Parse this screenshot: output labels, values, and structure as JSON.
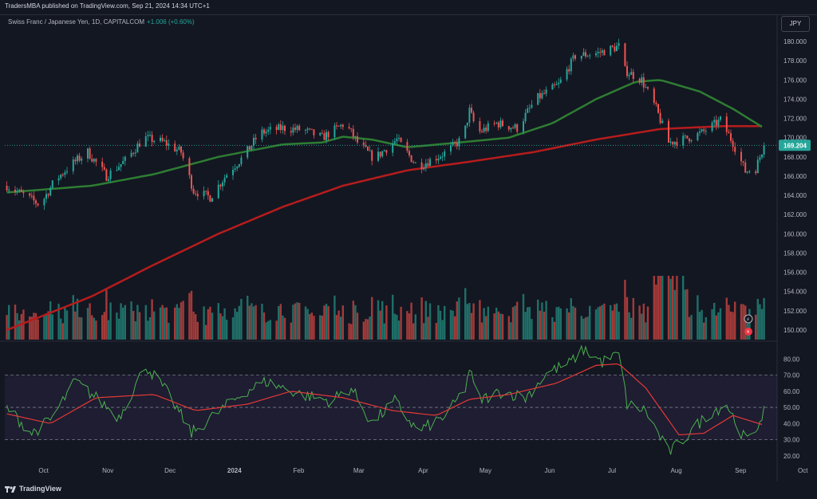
{
  "header": {
    "published": "TradersMBA published on TradingView.com, Sep 21, 2024 14:34 UTC+1"
  },
  "legend": {
    "symbol": "Swiss Franc / Japanese Yen, 1D, CAPITALCOM",
    "change": "+1.006 (+0.60%)"
  },
  "currency_button": "JPY",
  "footer": {
    "brand": "TradingView"
  },
  "colors": {
    "background": "#131722",
    "up": "#26a69a",
    "down": "#ef5350",
    "ma_fast": "#2e7d32",
    "ma_slow": "#b71c1c",
    "rsi_line": "#4caf50",
    "rsi_ma": "#e53935",
    "rsi_band": "#7e57c2",
    "last_price": "#26a69a"
  },
  "chart_data": [
    {
      "type": "candlestick",
      "x_ticks": [
        "Oct",
        "Nov",
        "Dec",
        "2024",
        "Feb",
        "Mar",
        "Apr",
        "May",
        "Jun",
        "Jul",
        "Aug",
        "Sep",
        "Oct"
      ],
      "ylim": [
        149,
        181
      ],
      "y_ticks": [
        "180.000",
        "178.000",
        "176.000",
        "174.000",
        "172.000",
        "170.000",
        "168.000",
        "166.000",
        "164.000",
        "162.000",
        "160.000",
        "158.000",
        "156.000",
        "154.000",
        "152.000",
        "150.000"
      ],
      "last_price": "169.204",
      "close_anchors": [
        {
          "x": "2023-09-21",
          "y": 165.0
        },
        {
          "x": "2023-10-01",
          "y": 163.8
        },
        {
          "x": "2023-10-07",
          "y": 163.0
        },
        {
          "x": "2023-10-14",
          "y": 165.5
        },
        {
          "x": "2023-10-22",
          "y": 167.2
        },
        {
          "x": "2023-10-30",
          "y": 168.5
        },
        {
          "x": "2023-11-08",
          "y": 166.0
        },
        {
          "x": "2023-11-18",
          "y": 167.8
        },
        {
          "x": "2023-11-26",
          "y": 170.0
        },
        {
          "x": "2023-12-06",
          "y": 169.5
        },
        {
          "x": "2023-12-14",
          "y": 168.5
        },
        {
          "x": "2023-12-20",
          "y": 164.5
        },
        {
          "x": "2023-12-28",
          "y": 163.8
        },
        {
          "x": "2024-01-06",
          "y": 166.5
        },
        {
          "x": "2024-01-13",
          "y": 168.0
        },
        {
          "x": "2024-01-21",
          "y": 170.5
        },
        {
          "x": "2024-02-01",
          "y": 171.0
        },
        {
          "x": "2024-02-11",
          "y": 170.8
        },
        {
          "x": "2024-02-20",
          "y": 170.0
        },
        {
          "x": "2024-03-02",
          "y": 171.5
        },
        {
          "x": "2024-03-08",
          "y": 169.5
        },
        {
          "x": "2024-03-16",
          "y": 167.8
        },
        {
          "x": "2024-03-27",
          "y": 169.8
        },
        {
          "x": "2024-04-06",
          "y": 167.0
        },
        {
          "x": "2024-04-20",
          "y": 168.5
        },
        {
          "x": "2024-04-28",
          "y": 170.0
        },
        {
          "x": "2024-05-01",
          "y": 172.8
        },
        {
          "x": "2024-05-05",
          "y": 170.5
        },
        {
          "x": "2024-05-14",
          "y": 171.5
        },
        {
          "x": "2024-05-24",
          "y": 171.0
        },
        {
          "x": "2024-06-02",
          "y": 174.0
        },
        {
          "x": "2024-06-13",
          "y": 175.5
        },
        {
          "x": "2024-06-21",
          "y": 178.5
        },
        {
          "x": "2024-07-02",
          "y": 178.8
        },
        {
          "x": "2024-07-12",
          "y": 179.5
        },
        {
          "x": "2024-07-15",
          "y": 177.0
        },
        {
          "x": "2024-07-23",
          "y": 176.0
        },
        {
          "x": "2024-07-30",
          "y": 173.0
        },
        {
          "x": "2024-08-05",
          "y": 169.5
        },
        {
          "x": "2024-08-12",
          "y": 169.8
        },
        {
          "x": "2024-08-21",
          "y": 170.5
        },
        {
          "x": "2024-08-30",
          "y": 171.8
        },
        {
          "x": "2024-09-05",
          "y": 169.5
        },
        {
          "x": "2024-09-11",
          "y": 166.5
        },
        {
          "x": "2024-09-16",
          "y": 166.8
        },
        {
          "x": "2024-09-20",
          "y": 169.2
        }
      ],
      "ma_fast": [
        {
          "x": "2023-09-21",
          "y": 164.3
        },
        {
          "x": "2023-11-01",
          "y": 165.0
        },
        {
          "x": "2023-12-01",
          "y": 166.2
        },
        {
          "x": "2024-01-01",
          "y": 168.0
        },
        {
          "x": "2024-02-01",
          "y": 169.3
        },
        {
          "x": "2024-02-20",
          "y": 169.5
        },
        {
          "x": "2024-03-01",
          "y": 170.1
        },
        {
          "x": "2024-03-15",
          "y": 169.8
        },
        {
          "x": "2024-04-01",
          "y": 169.0
        },
        {
          "x": "2024-05-01",
          "y": 169.6
        },
        {
          "x": "2024-05-20",
          "y": 170.0
        },
        {
          "x": "2024-06-10",
          "y": 171.5
        },
        {
          "x": "2024-07-01",
          "y": 174.0
        },
        {
          "x": "2024-07-20",
          "y": 175.8
        },
        {
          "x": "2024-08-01",
          "y": 176.0
        },
        {
          "x": "2024-08-20",
          "y": 174.8
        },
        {
          "x": "2024-09-05",
          "y": 173.0
        },
        {
          "x": "2024-09-20",
          "y": 171.0
        }
      ],
      "ma_slow": [
        {
          "x": "2023-09-21",
          "y": 150.0
        },
        {
          "x": "2023-11-01",
          "y": 153.5
        },
        {
          "x": "2023-12-01",
          "y": 156.8
        },
        {
          "x": "2024-01-01",
          "y": 160.0
        },
        {
          "x": "2024-02-01",
          "y": 162.8
        },
        {
          "x": "2024-03-01",
          "y": 165.0
        },
        {
          "x": "2024-04-01",
          "y": 166.6
        },
        {
          "x": "2024-05-01",
          "y": 167.5
        },
        {
          "x": "2024-06-01",
          "y": 168.5
        },
        {
          "x": "2024-07-01",
          "y": 169.8
        },
        {
          "x": "2024-08-01",
          "y": 170.9
        },
        {
          "x": "2024-09-01",
          "y": 171.2
        },
        {
          "x": "2024-09-20",
          "y": 171.2
        }
      ]
    },
    {
      "type": "bar",
      "name": "Volume",
      "note": "shown as bars at bottom of price pane, colored by candle direction"
    },
    {
      "type": "line",
      "ylim": [
        15,
        90
      ],
      "y_ticks": [
        "80.00",
        "70.00",
        "60.00",
        "50.00",
        "40.00",
        "30.00",
        "20.00"
      ],
      "band": [
        30,
        70
      ],
      "midline": 50,
      "rsi_anchors": [
        {
          "x": "2023-09-21",
          "y": 50
        },
        {
          "x": "2023-10-03",
          "y": 34
        },
        {
          "x": "2023-10-12",
          "y": 42
        },
        {
          "x": "2023-10-24",
          "y": 66
        },
        {
          "x": "2023-11-03",
          "y": 56
        },
        {
          "x": "2023-11-14",
          "y": 44
        },
        {
          "x": "2023-11-27",
          "y": 76
        },
        {
          "x": "2023-12-08",
          "y": 58
        },
        {
          "x": "2023-12-19",
          "y": 34
        },
        {
          "x": "2024-01-04",
          "y": 50
        },
        {
          "x": "2024-01-14",
          "y": 60
        },
        {
          "x": "2024-01-24",
          "y": 66
        },
        {
          "x": "2024-02-10",
          "y": 58
        },
        {
          "x": "2024-02-24",
          "y": 54
        },
        {
          "x": "2024-03-05",
          "y": 62
        },
        {
          "x": "2024-03-15",
          "y": 40
        },
        {
          "x": "2024-03-26",
          "y": 54
        },
        {
          "x": "2024-04-06",
          "y": 35
        },
        {
          "x": "2024-04-20",
          "y": 45
        },
        {
          "x": "2024-04-29",
          "y": 62
        },
        {
          "x": "2024-05-01",
          "y": 74
        },
        {
          "x": "2024-05-05",
          "y": 54
        },
        {
          "x": "2024-05-17",
          "y": 60
        },
        {
          "x": "2024-05-28",
          "y": 56
        },
        {
          "x": "2024-06-08",
          "y": 72
        },
        {
          "x": "2024-06-18",
          "y": 77
        },
        {
          "x": "2024-06-25",
          "y": 86
        },
        {
          "x": "2024-07-04",
          "y": 78
        },
        {
          "x": "2024-07-12",
          "y": 83
        },
        {
          "x": "2024-07-16",
          "y": 52
        },
        {
          "x": "2024-07-25",
          "y": 48
        },
        {
          "x": "2024-08-05",
          "y": 22
        },
        {
          "x": "2024-08-12",
          "y": 30
        },
        {
          "x": "2024-08-24",
          "y": 46
        },
        {
          "x": "2024-09-02",
          "y": 52
        },
        {
          "x": "2024-09-10",
          "y": 32
        },
        {
          "x": "2024-09-14",
          "y": 29
        },
        {
          "x": "2024-09-20",
          "y": 49
        }
      ],
      "rsi_ma_anchors": [
        {
          "x": "2023-09-21",
          "y": 46
        },
        {
          "x": "2023-10-12",
          "y": 40
        },
        {
          "x": "2023-11-03",
          "y": 56
        },
        {
          "x": "2023-12-01",
          "y": 58
        },
        {
          "x": "2023-12-21",
          "y": 48
        },
        {
          "x": "2024-01-15",
          "y": 52
        },
        {
          "x": "2024-02-05",
          "y": 60
        },
        {
          "x": "2024-03-01",
          "y": 56
        },
        {
          "x": "2024-03-25",
          "y": 48
        },
        {
          "x": "2024-04-15",
          "y": 45
        },
        {
          "x": "2024-05-01",
          "y": 55
        },
        {
          "x": "2024-05-20",
          "y": 58
        },
        {
          "x": "2024-06-12",
          "y": 65
        },
        {
          "x": "2024-07-01",
          "y": 76
        },
        {
          "x": "2024-07-12",
          "y": 77
        },
        {
          "x": "2024-07-25",
          "y": 62
        },
        {
          "x": "2024-08-10",
          "y": 33
        },
        {
          "x": "2024-08-22",
          "y": 34
        },
        {
          "x": "2024-09-05",
          "y": 45
        },
        {
          "x": "2024-09-20",
          "y": 39
        }
      ]
    }
  ]
}
